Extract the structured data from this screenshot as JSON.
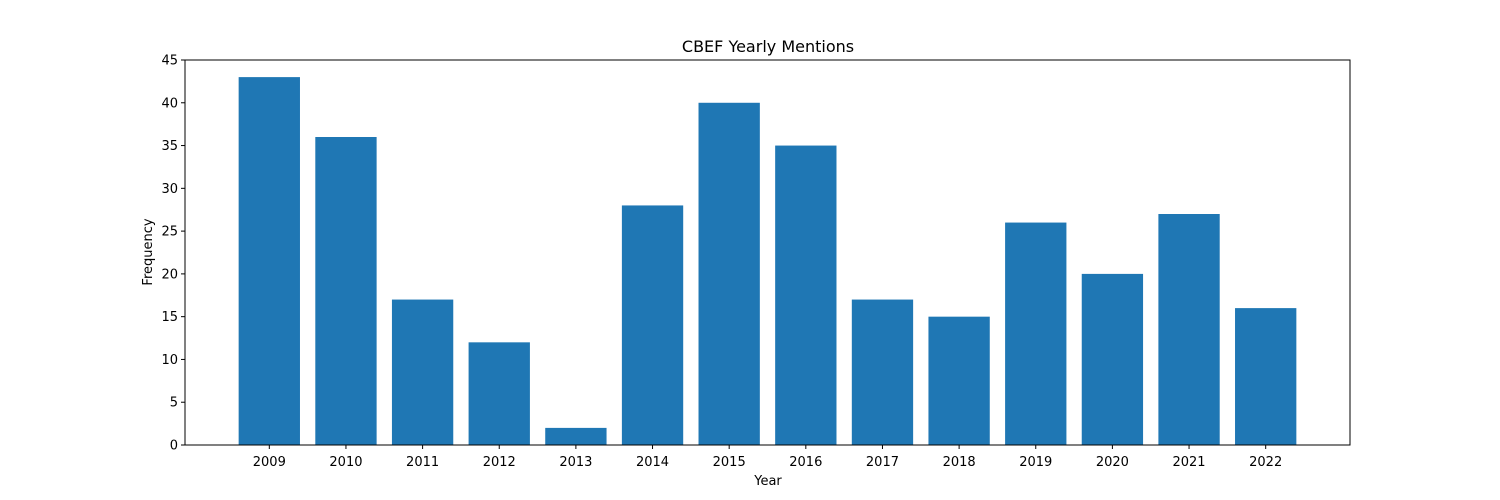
{
  "chart_data": {
    "type": "bar",
    "title": "CBEF Yearly Mentions",
    "xlabel": "Year",
    "ylabel": "Frequency",
    "categories": [
      "2009",
      "2010",
      "2011",
      "2012",
      "2013",
      "2014",
      "2015",
      "2016",
      "2017",
      "2018",
      "2019",
      "2020",
      "2021",
      "2022"
    ],
    "values": [
      43,
      36,
      17,
      12,
      2,
      28,
      40,
      35,
      17,
      15,
      26,
      20,
      27,
      16
    ],
    "ylim": [
      0,
      45
    ],
    "yticks": [
      0,
      5,
      10,
      15,
      20,
      25,
      30,
      35,
      40,
      45
    ],
    "grid": false,
    "bar_color": "#1f77b4"
  }
}
